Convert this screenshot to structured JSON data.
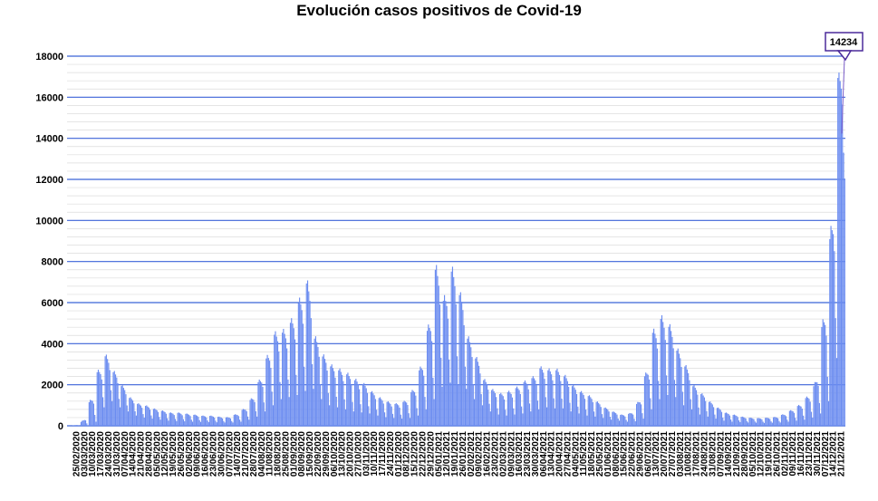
{
  "chart_data": {
    "type": "bar",
    "title": "Evolución casos positivos de Covid-19",
    "ylim": [
      0,
      18000
    ],
    "y_ticks": [
      0,
      2000,
      4000,
      6000,
      8000,
      10000,
      12000,
      14000,
      16000,
      18000
    ],
    "grid": true,
    "bar_color": "#6b8cf0",
    "gridline_color": "#3b63d8",
    "x_tick_labels": [
      "25/02/2020",
      "03/03/2020",
      "10/03/2020",
      "17/03/2020",
      "24/03/2020",
      "31/03/2020",
      "07/04/2020",
      "14/04/2020",
      "21/04/2020",
      "28/04/2020",
      "05/05/2020",
      "12/05/2020",
      "19/05/2020",
      "26/05/2020",
      "02/06/2020",
      "09/06/2020",
      "16/06/2020",
      "23/06/2020",
      "30/06/2020",
      "07/07/2020",
      "14/07/2020",
      "21/07/2020",
      "28/07/2020",
      "04/08/2020",
      "11/08/2020",
      "18/08/2020",
      "25/08/2020",
      "01/09/2020",
      "08/09/2020",
      "15/09/2020",
      "22/09/2020",
      "29/09/2020",
      "06/10/2020",
      "13/10/2020",
      "20/10/2020",
      "27/10/2020",
      "03/11/2020",
      "10/11/2020",
      "17/11/2020",
      "24/11/2020",
      "01/12/2020",
      "08/12/2020",
      "15/12/2020",
      "22/12/2020",
      "29/12/2020",
      "05/01/2021",
      "12/01/2021",
      "19/01/2021",
      "26/01/2021",
      "02/02/2021",
      "09/02/2021",
      "16/02/2021",
      "23/02/2021",
      "02/03/2021",
      "09/03/2021",
      "16/03/2021",
      "23/03/2021",
      "30/03/2021",
      "06/04/2021",
      "13/04/2021",
      "20/04/2021",
      "27/04/2021",
      "04/05/2021",
      "11/05/2021",
      "18/05/2021",
      "25/05/2021",
      "01/06/2021",
      "08/06/2021",
      "15/06/2021",
      "22/06/2021",
      "29/06/2021",
      "06/07/2021",
      "13/07/2021",
      "20/07/2021",
      "27/07/2021",
      "03/08/2021",
      "10/08/2021",
      "17/08/2021",
      "24/08/2021",
      "31/08/2021",
      "07/09/2021",
      "14/09/2021",
      "21/09/2021",
      "28/09/2021",
      "05/10/2021",
      "12/10/2021",
      "19/10/2021",
      "26/10/2021",
      "02/11/2021",
      "09/11/2021",
      "16/11/2021",
      "23/11/2021",
      "30/11/2021",
      "07/12/2021",
      "14/12/2021",
      "21/12/2021"
    ],
    "weekly_max": [
      20,
      200,
      1200,
      2700,
      3500,
      2700,
      2000,
      1400,
      1100,
      1000,
      850,
      750,
      650,
      650,
      600,
      550,
      500,
      500,
      450,
      420,
      550,
      800,
      1300,
      2200,
      3400,
      4600,
      4700,
      5200,
      6200,
      7200,
      4400,
      3500,
      3000,
      2800,
      2600,
      2300,
      2100,
      1700,
      1400,
      1200,
      1100,
      1200,
      1700,
      2800,
      4800,
      7900,
      6300,
      7800,
      6600,
      4400,
      3400,
      2300,
      1800,
      1600,
      1700,
      1900,
      2200,
      2400,
      2900,
      2800,
      2800,
      2500,
      2000,
      1700,
      1500,
      1200,
      900,
      700,
      550,
      600,
      1100,
      2500,
      4700,
      5400,
      5000,
      3800,
      3000,
      2000,
      1600,
      1200,
      900,
      650,
      550,
      450,
      400,
      380,
      400,
      430,
      550,
      750,
      1000,
      1400,
      2000,
      5000,
      9400,
      17200
    ],
    "weekly_min": [
      0,
      20,
      200,
      900,
      1200,
      900,
      700,
      500,
      400,
      350,
      300,
      250,
      230,
      220,
      200,
      190,
      180,
      170,
      160,
      160,
      200,
      300,
      450,
      700,
      1000,
      1300,
      1400,
      1500,
      1700,
      1800,
      1300,
      1000,
      900,
      800,
      700,
      650,
      600,
      500,
      420,
      380,
      350,
      380,
      500,
      800,
      1300,
      1900,
      2100,
      2000,
      1800,
      1300,
      1000,
      700,
      550,
      500,
      550,
      600,
      700,
      800,
      900,
      850,
      850,
      700,
      600,
      500,
      450,
      380,
      300,
      250,
      200,
      220,
      350,
      800,
      1300,
      1500,
      1400,
      1000,
      800,
      550,
      450,
      350,
      250,
      200,
      180,
      160,
      150,
      140,
      150,
      160,
      200,
      250,
      300,
      400,
      600,
      1200,
      3300,
      12000
    ],
    "callout_label": "14234",
    "callout_value": 14234
  }
}
